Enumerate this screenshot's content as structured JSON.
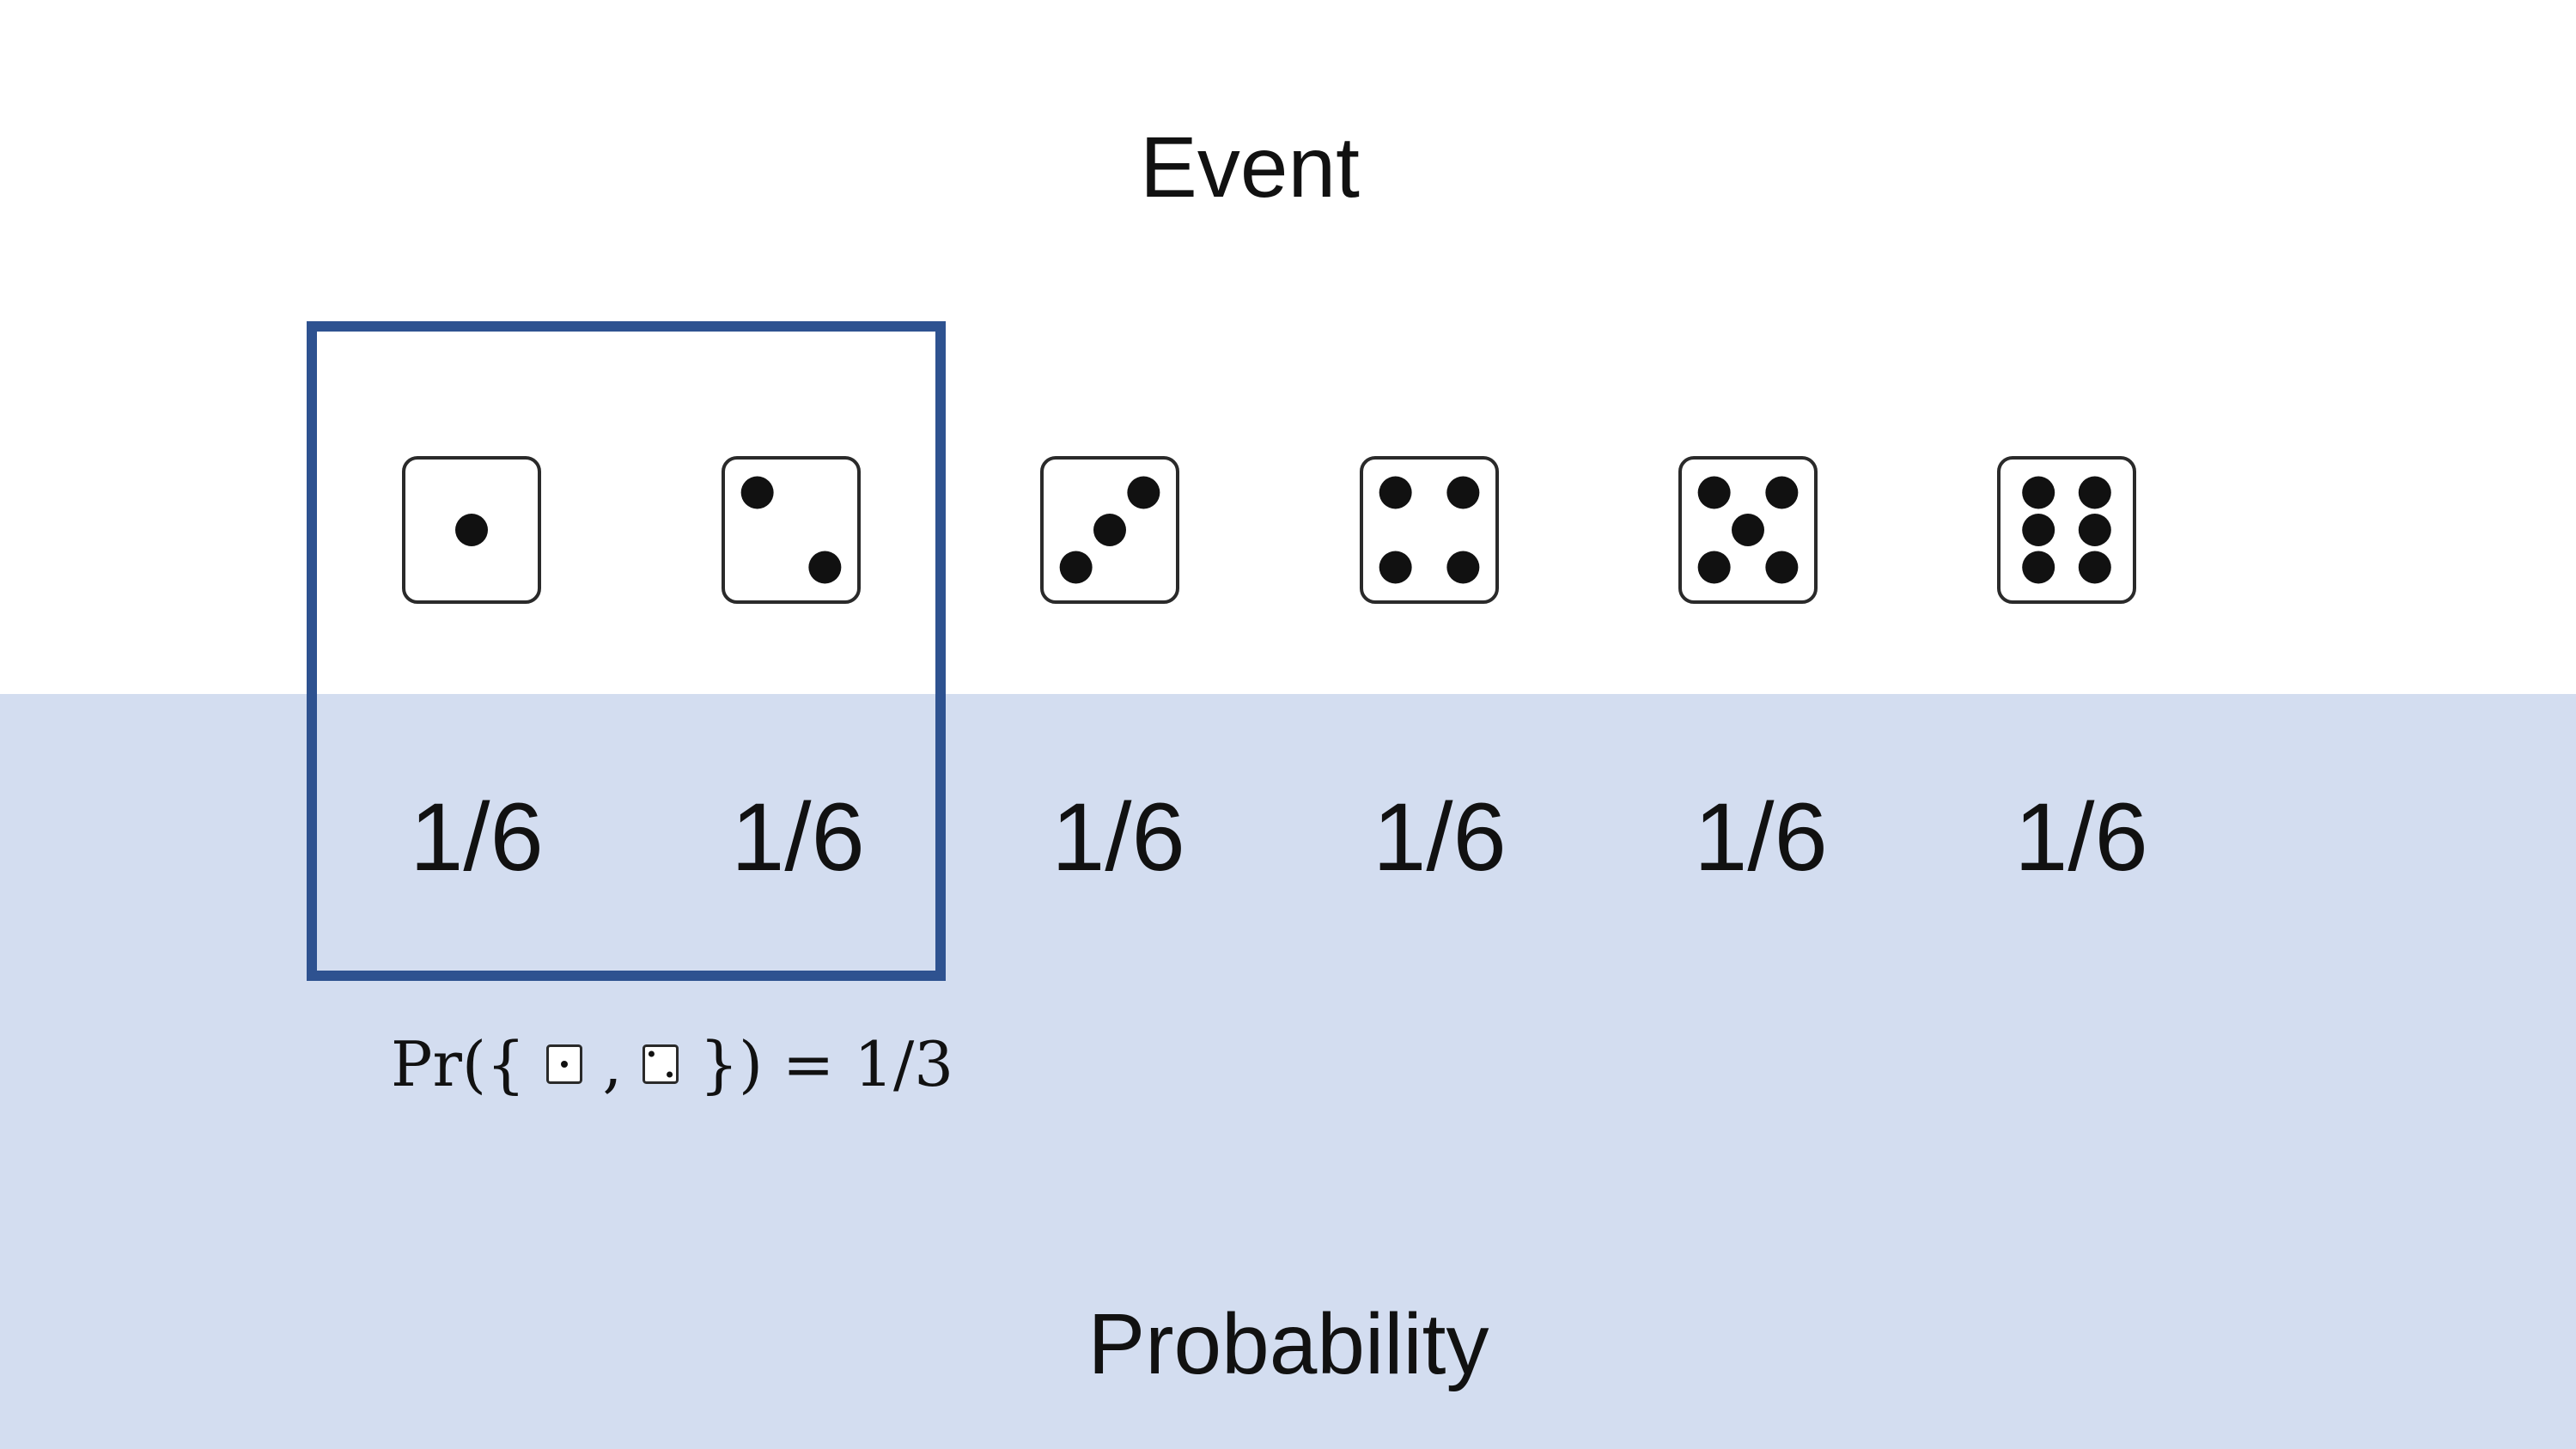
{
  "event_label": "Event",
  "probability_label": "Probability",
  "outcomes": [
    {
      "face": 1,
      "probability": "1/6"
    },
    {
      "face": 2,
      "probability": "1/6"
    },
    {
      "face": 3,
      "probability": "1/6"
    },
    {
      "face": 4,
      "probability": "1/6"
    },
    {
      "face": 5,
      "probability": "1/6"
    },
    {
      "face": 6,
      "probability": "1/6"
    }
  ],
  "selected_event": {
    "faces": [
      1,
      2
    ],
    "prefix": "Pr({",
    "separator": ",",
    "suffix": "}) = 1/3"
  },
  "colors": {
    "highlight_border": "#2e5290",
    "probability_band": "#d3ddf0",
    "pip": "#111111"
  }
}
